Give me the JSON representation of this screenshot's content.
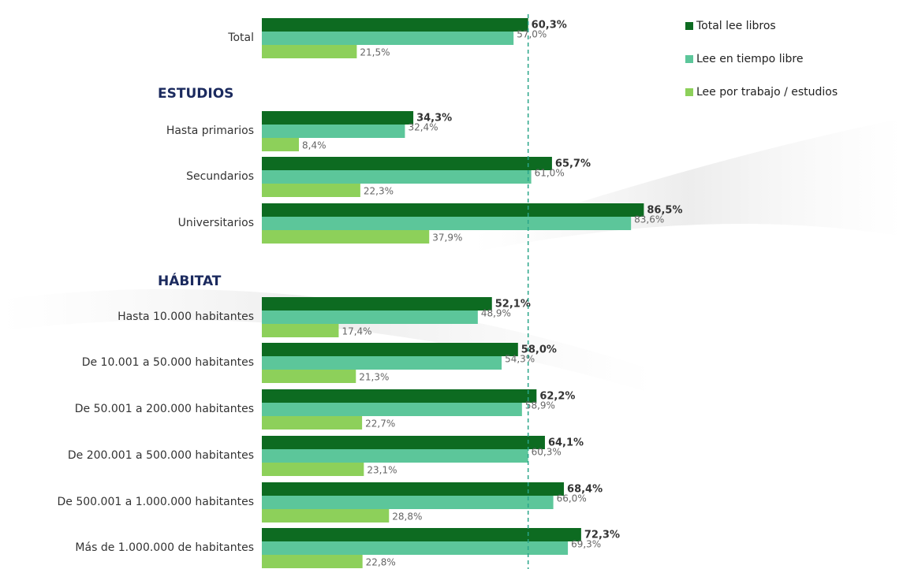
{
  "chart_data": {
    "type": "hbar",
    "categories": [
      "Total",
      "Hasta primarios",
      "Secundarios",
      "Universitarios",
      "Hasta 10.000 habitantes",
      "De 10.001 a 50.000 habitantes",
      "De 50.001 a 200.000 habitantes",
      "De 200.001 a 500.000 habitantes",
      "De 500.001 a 1.000.000 habitantes",
      "Más de 1.000.000 de habitantes"
    ],
    "section_titles": [
      "ESTUDIOS",
      "HÁBITAT"
    ],
    "series": [
      {
        "name": "Total lee libros",
        "color": "#0d6b21",
        "values": [
          60.3,
          34.3,
          65.7,
          86.5,
          52.1,
          58.0,
          62.2,
          64.1,
          68.4,
          72.3
        ],
        "value_labels": [
          "60,3%",
          "34,3%",
          "65,7%",
          "86,5%",
          "52,1%",
          "58,0%",
          "62,2%",
          "64,1%",
          "68,4%",
          "72,3%"
        ]
      },
      {
        "name": "Lee en tiempo libre",
        "color": "#5cc69a",
        "values": [
          57.0,
          32.4,
          61.0,
          83.6,
          48.9,
          54.3,
          58.9,
          60.3,
          66.0,
          69.3
        ],
        "value_labels": [
          "57,0%",
          "32,4%",
          "61,0%",
          "83,6%",
          "48,9%",
          "54,3%",
          "58,9%",
          "60,3%",
          "66,0%",
          "69,3%"
        ]
      },
      {
        "name": "Lee por trabajo / estudios",
        "color": "#8dd05a",
        "values": [
          21.5,
          8.4,
          22.3,
          37.9,
          17.4,
          21.3,
          22.7,
          23.1,
          28.8,
          22.8
        ],
        "value_labels": [
          "21,5%",
          "8,4%",
          "22,3%",
          "37,9%",
          "17,4%",
          "21,3%",
          "22,7%",
          "23,1%",
          "28,8%",
          "22,8%"
        ]
      }
    ]
  }
}
